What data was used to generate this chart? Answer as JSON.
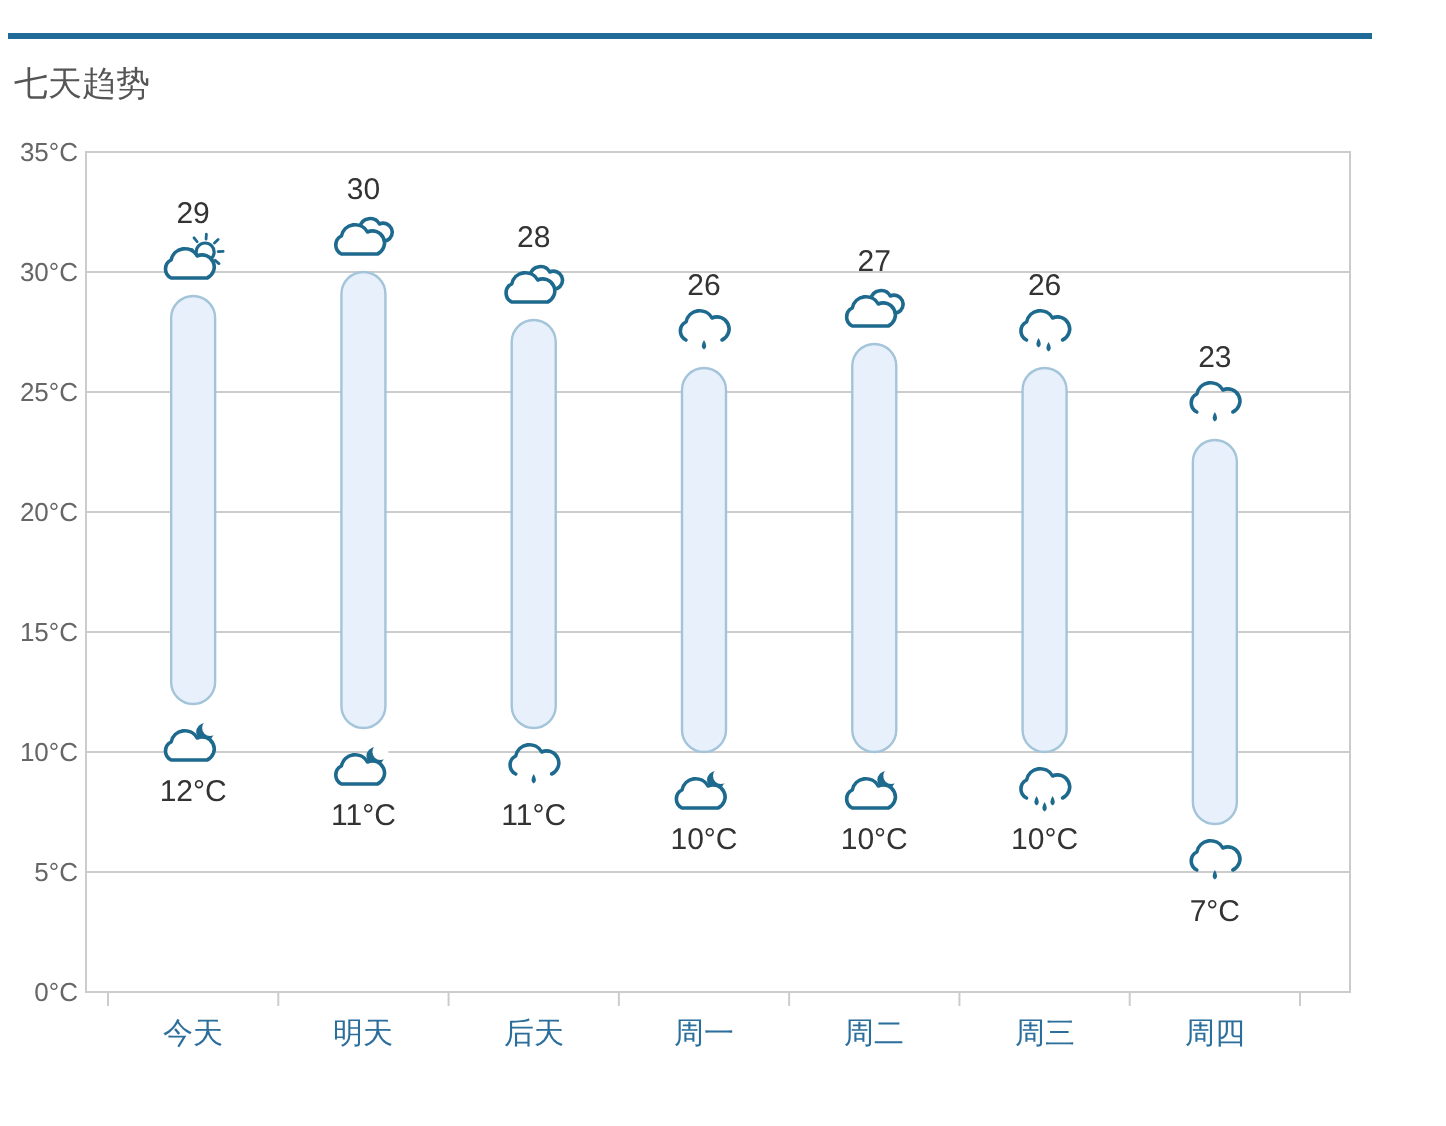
{
  "chart_data": {
    "type": "bar",
    "title": "七天趋势",
    "categories": [
      "今天",
      "明天",
      "后天",
      "周一",
      "周二",
      "周三",
      "周四"
    ],
    "values": [
      17,
      19,
      17,
      16,
      17,
      16,
      16
    ],
    "base": [
      12,
      11,
      11,
      10,
      10,
      10,
      7
    ],
    "color": "#e8f1fb",
    "ylim": [
      0,
      35
    ],
    "yticks": [
      {
        "value": 0,
        "label": "0°C"
      },
      {
        "value": 5,
        "label": "5°C"
      },
      {
        "value": 10,
        "label": "10°C"
      },
      {
        "value": 15,
        "label": "15°C"
      },
      {
        "value": 20,
        "label": "20°C"
      },
      {
        "value": 25,
        "label": "25°C"
      },
      {
        "value": 30,
        "label": "30°C"
      },
      {
        "value": 35,
        "label": "35°C"
      }
    ],
    "grid": "y",
    "annotations": [
      {
        "text": "29",
        "x": "今天",
        "y": 29
      },
      {
        "text": "30",
        "x": "明天",
        "y": 30
      },
      {
        "text": "28",
        "x": "后天",
        "y": 28
      },
      {
        "text": "26",
        "x": "周一",
        "y": 26
      },
      {
        "text": "27",
        "x": "周二",
        "y": 27
      },
      {
        "text": "26",
        "x": "周三",
        "y": 26
      },
      {
        "text": "23",
        "x": "周四",
        "y": 23
      },
      {
        "text": "12°C",
        "x": "今天",
        "y": 12
      },
      {
        "text": "11°C",
        "x": "明天",
        "y": 11
      },
      {
        "text": "11°C",
        "x": "后天",
        "y": 11
      },
      {
        "text": "10°C",
        "x": "周一",
        "y": 10
      },
      {
        "text": "10°C",
        "x": "周二",
        "y": 10
      },
      {
        "text": "10°C",
        "x": "周三",
        "y": 10
      },
      {
        "text": "7°C",
        "x": "周四",
        "y": 7
      }
    ]
  }
}
